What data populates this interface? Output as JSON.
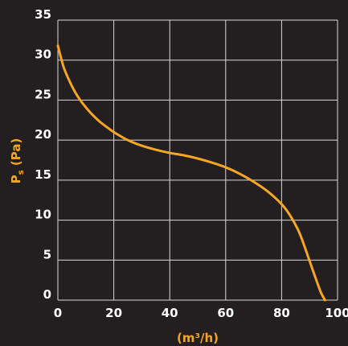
{
  "chart_data": {
    "type": "line",
    "title": "",
    "xlabel": "(m³/h)",
    "ylabel_main": "P",
    "ylabel_sub": "s",
    "ylabel_rest": " (Pa)",
    "xlim": [
      0,
      100
    ],
    "ylim": [
      0,
      35
    ],
    "xticks": [
      0,
      20,
      40,
      60,
      80,
      100
    ],
    "yticks": [
      0,
      5,
      10,
      15,
      20,
      25,
      30,
      35
    ],
    "grid": true,
    "series": [
      {
        "color": "#f5a623",
        "x": [
          0,
          2,
          4,
          6,
          8,
          10,
          12,
          15,
          18,
          20,
          25,
          30,
          35,
          40,
          45,
          50,
          55,
          60,
          65,
          70,
          75,
          80,
          83,
          86,
          88,
          90,
          92,
          94,
          95.5
        ],
        "y": [
          31.8,
          29.2,
          27.5,
          26.1,
          25.0,
          24.1,
          23.3,
          22.3,
          21.5,
          21.0,
          20.0,
          19.3,
          18.8,
          18.4,
          18.1,
          17.7,
          17.2,
          16.6,
          15.8,
          14.8,
          13.6,
          12.0,
          10.6,
          8.7,
          6.9,
          4.9,
          2.9,
          1.0,
          0.0
        ]
      }
    ]
  }
}
